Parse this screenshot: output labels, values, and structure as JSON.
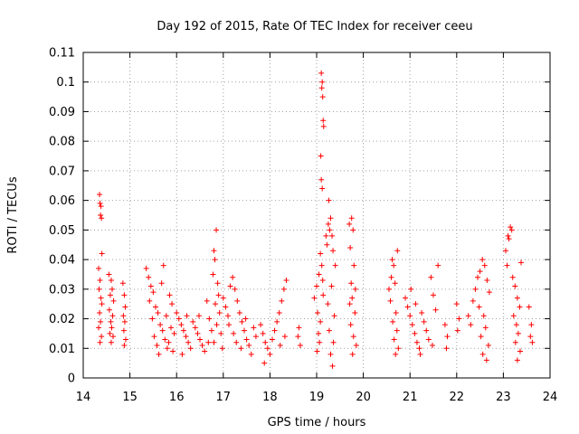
{
  "chart_data": {
    "type": "scatter",
    "title": "Day 192 of 2015, Rate Of TEC Index for receiver ceeu",
    "xlabel": "GPS time / hours",
    "ylabel": "ROTI / TECUs",
    "xlim": [
      14,
      24
    ],
    "ylim": [
      0,
      0.11
    ],
    "xticks": [
      "14",
      "15",
      "16",
      "17",
      "18",
      "19",
      "20",
      "21",
      "22",
      "23",
      "24"
    ],
    "yticks": [
      "0",
      "0.01",
      "0.02",
      "0.03",
      "0.04",
      "0.05",
      "0.06",
      "0.07",
      "0.08",
      "0.09",
      "0.1",
      "0.11"
    ],
    "grid": true,
    "marker": "+",
    "color": "#ff0000",
    "series": [
      {
        "values": [
          [
            14.35,
            0.062
          ],
          [
            14.36,
            0.059
          ],
          [
            14.38,
            0.058
          ],
          [
            14.37,
            0.055
          ],
          [
            14.39,
            0.054
          ],
          [
            14.4,
            0.042
          ],
          [
            14.33,
            0.037
          ],
          [
            14.36,
            0.033
          ],
          [
            14.34,
            0.03
          ],
          [
            14.38,
            0.027
          ],
          [
            14.4,
            0.025
          ],
          [
            14.35,
            0.022
          ],
          [
            14.37,
            0.019
          ],
          [
            14.33,
            0.017
          ],
          [
            14.39,
            0.014
          ],
          [
            14.36,
            0.012
          ],
          [
            14.55,
            0.035
          ],
          [
            14.6,
            0.033
          ],
          [
            14.62,
            0.03
          ],
          [
            14.58,
            0.028
          ],
          [
            14.65,
            0.026
          ],
          [
            14.56,
            0.023
          ],
          [
            14.63,
            0.021
          ],
          [
            14.59,
            0.019
          ],
          [
            14.61,
            0.017
          ],
          [
            14.57,
            0.015
          ],
          [
            14.64,
            0.014
          ],
          [
            14.6,
            0.012
          ],
          [
            14.85,
            0.032
          ],
          [
            14.88,
            0.028
          ],
          [
            14.9,
            0.024
          ],
          [
            14.86,
            0.021
          ],
          [
            14.89,
            0.019
          ],
          [
            14.87,
            0.016
          ],
          [
            14.91,
            0.013
          ],
          [
            14.88,
            0.011
          ],
          [
            15.35,
            0.037
          ],
          [
            15.4,
            0.034
          ],
          [
            15.45,
            0.031
          ],
          [
            15.5,
            0.029
          ],
          [
            15.42,
            0.026
          ],
          [
            15.55,
            0.024
          ],
          [
            15.6,
            0.022
          ],
          [
            15.48,
            0.02
          ],
          [
            15.65,
            0.018
          ],
          [
            15.7,
            0.016
          ],
          [
            15.52,
            0.014
          ],
          [
            15.75,
            0.013
          ],
          [
            15.58,
            0.011
          ],
          [
            15.8,
            0.01
          ],
          [
            15.62,
            0.008
          ],
          [
            15.72,
            0.038
          ],
          [
            15.68,
            0.032
          ],
          [
            15.85,
            0.028
          ],
          [
            15.9,
            0.025
          ],
          [
            15.78,
            0.021
          ],
          [
            15.88,
            0.017
          ],
          [
            15.95,
            0.015
          ],
          [
            15.83,
            0.012
          ],
          [
            15.92,
            0.009
          ],
          [
            16.0,
            0.022
          ],
          [
            16.05,
            0.02
          ],
          [
            16.1,
            0.018
          ],
          [
            16.15,
            0.016
          ],
          [
            16.2,
            0.014
          ],
          [
            16.25,
            0.012
          ],
          [
            16.3,
            0.01
          ],
          [
            16.12,
            0.008
          ],
          [
            16.22,
            0.021
          ],
          [
            16.35,
            0.019
          ],
          [
            16.4,
            0.017
          ],
          [
            16.45,
            0.015
          ],
          [
            16.5,
            0.013
          ],
          [
            16.55,
            0.011
          ],
          [
            16.6,
            0.009
          ],
          [
            16.48,
            0.021
          ],
          [
            16.65,
            0.026
          ],
          [
            16.7,
            0.02
          ],
          [
            16.75,
            0.016
          ],
          [
            16.68,
            0.012
          ],
          [
            16.8,
            0.043
          ],
          [
            16.82,
            0.04
          ],
          [
            16.85,
            0.05
          ],
          [
            16.78,
            0.035
          ],
          [
            16.88,
            0.032
          ],
          [
            16.9,
            0.028
          ],
          [
            16.83,
            0.025
          ],
          [
            16.92,
            0.022
          ],
          [
            16.86,
            0.018
          ],
          [
            16.95,
            0.015
          ],
          [
            16.8,
            0.012
          ],
          [
            16.98,
            0.01
          ],
          [
            17.0,
            0.027
          ],
          [
            17.05,
            0.024
          ],
          [
            17.1,
            0.021
          ],
          [
            17.15,
            0.031
          ],
          [
            17.2,
            0.034
          ],
          [
            17.25,
            0.03
          ],
          [
            17.3,
            0.026
          ],
          [
            17.12,
            0.018
          ],
          [
            17.22,
            0.015
          ],
          [
            17.35,
            0.022
          ],
          [
            17.4,
            0.019
          ],
          [
            17.28,
            0.012
          ],
          [
            17.45,
            0.016
          ],
          [
            17.5,
            0.013
          ],
          [
            17.38,
            0.01
          ],
          [
            17.55,
            0.011
          ],
          [
            17.6,
            0.008
          ],
          [
            17.48,
            0.02
          ],
          [
            17.65,
            0.017
          ],
          [
            17.7,
            0.014
          ],
          [
            17.8,
            0.018
          ],
          [
            17.85,
            0.015
          ],
          [
            17.9,
            0.012
          ],
          [
            17.95,
            0.01
          ],
          [
            18.0,
            0.008
          ],
          [
            17.88,
            0.005
          ],
          [
            18.05,
            0.013
          ],
          [
            18.1,
            0.016
          ],
          [
            18.15,
            0.019
          ],
          [
            18.2,
            0.022
          ],
          [
            18.25,
            0.026
          ],
          [
            18.3,
            0.03
          ],
          [
            18.35,
            0.033
          ],
          [
            18.22,
            0.011
          ],
          [
            18.32,
            0.014
          ],
          [
            18.6,
            0.014
          ],
          [
            18.65,
            0.011
          ],
          [
            18.62,
            0.017
          ],
          [
            18.95,
            0.027
          ],
          [
            19.0,
            0.031
          ],
          [
            19.05,
            0.035
          ],
          [
            19.02,
            0.022
          ],
          [
            19.08,
            0.019
          ],
          [
            19.04,
            0.015
          ],
          [
            19.06,
            0.012
          ],
          [
            19.01,
            0.009
          ],
          [
            19.1,
            0.103
          ],
          [
            19.12,
            0.1
          ],
          [
            19.11,
            0.098
          ],
          [
            19.13,
            0.095
          ],
          [
            19.14,
            0.087
          ],
          [
            19.15,
            0.085
          ],
          [
            19.09,
            0.075
          ],
          [
            19.1,
            0.067
          ],
          [
            19.12,
            0.064
          ],
          [
            19.08,
            0.042
          ],
          [
            19.11,
            0.038
          ],
          [
            19.13,
            0.033
          ],
          [
            19.14,
            0.028
          ],
          [
            19.2,
            0.048
          ],
          [
            19.25,
            0.052
          ],
          [
            19.22,
            0.045
          ],
          [
            19.28,
            0.05
          ],
          [
            19.3,
            0.054
          ],
          [
            19.33,
            0.048
          ],
          [
            19.35,
            0.043
          ],
          [
            19.26,
            0.06
          ],
          [
            19.4,
            0.038
          ],
          [
            19.32,
            0.031
          ],
          [
            19.24,
            0.025
          ],
          [
            19.38,
            0.021
          ],
          [
            19.27,
            0.016
          ],
          [
            19.36,
            0.012
          ],
          [
            19.3,
            0.008
          ],
          [
            19.34,
            0.004
          ],
          [
            19.7,
            0.052
          ],
          [
            19.75,
            0.054
          ],
          [
            19.78,
            0.05
          ],
          [
            19.72,
            0.044
          ],
          [
            19.8,
            0.038
          ],
          [
            19.74,
            0.032
          ],
          [
            19.76,
            0.027
          ],
          [
            19.82,
            0.022
          ],
          [
            19.73,
            0.018
          ],
          [
            19.79,
            0.014
          ],
          [
            19.85,
            0.011
          ],
          [
            19.71,
            0.025
          ],
          [
            19.83,
            0.03
          ],
          [
            19.77,
            0.008
          ],
          [
            20.55,
            0.03
          ],
          [
            20.6,
            0.034
          ],
          [
            20.65,
            0.038
          ],
          [
            20.62,
            0.04
          ],
          [
            20.68,
            0.032
          ],
          [
            20.58,
            0.026
          ],
          [
            20.7,
            0.022
          ],
          [
            20.63,
            0.019
          ],
          [
            20.72,
            0.016
          ],
          [
            20.66,
            0.013
          ],
          [
            20.75,
            0.01
          ],
          [
            20.69,
            0.008
          ],
          [
            20.73,
            0.043
          ],
          [
            20.9,
            0.027
          ],
          [
            20.95,
            0.024
          ],
          [
            21.0,
            0.021
          ],
          [
            21.05,
            0.018
          ],
          [
            21.1,
            0.015
          ],
          [
            21.15,
            0.012
          ],
          [
            21.2,
            0.01
          ],
          [
            21.02,
            0.03
          ],
          [
            21.12,
            0.025
          ],
          [
            21.25,
            0.022
          ],
          [
            21.3,
            0.019
          ],
          [
            21.35,
            0.016
          ],
          [
            21.4,
            0.013
          ],
          [
            21.22,
            0.008
          ],
          [
            21.45,
            0.034
          ],
          [
            21.5,
            0.028
          ],
          [
            21.55,
            0.023
          ],
          [
            21.6,
            0.038
          ],
          [
            21.48,
            0.011
          ],
          [
            21.75,
            0.018
          ],
          [
            21.8,
            0.014
          ],
          [
            21.78,
            0.01
          ],
          [
            22.0,
            0.025
          ],
          [
            22.05,
            0.02
          ],
          [
            22.02,
            0.016
          ],
          [
            22.25,
            0.021
          ],
          [
            22.3,
            0.018
          ],
          [
            22.35,
            0.026
          ],
          [
            22.4,
            0.03
          ],
          [
            22.45,
            0.034
          ],
          [
            22.5,
            0.036
          ],
          [
            22.55,
            0.04
          ],
          [
            22.6,
            0.038
          ],
          [
            22.65,
            0.033
          ],
          [
            22.7,
            0.029
          ],
          [
            22.48,
            0.024
          ],
          [
            22.58,
            0.021
          ],
          [
            22.62,
            0.017
          ],
          [
            22.52,
            0.014
          ],
          [
            22.68,
            0.011
          ],
          [
            22.56,
            0.008
          ],
          [
            22.64,
            0.006
          ],
          [
            23.05,
            0.043
          ],
          [
            23.1,
            0.048
          ],
          [
            23.15,
            0.051
          ],
          [
            23.18,
            0.05
          ],
          [
            23.12,
            0.047
          ],
          [
            23.08,
            0.038
          ],
          [
            23.2,
            0.034
          ],
          [
            23.25,
            0.031
          ],
          [
            23.3,
            0.027
          ],
          [
            23.35,
            0.024
          ],
          [
            23.22,
            0.021
          ],
          [
            23.28,
            0.018
          ],
          [
            23.38,
            0.039
          ],
          [
            23.32,
            0.015
          ],
          [
            23.26,
            0.012
          ],
          [
            23.36,
            0.009
          ],
          [
            23.3,
            0.006
          ],
          [
            23.55,
            0.024
          ],
          [
            23.6,
            0.018
          ],
          [
            23.58,
            0.014
          ],
          [
            23.62,
            0.012
          ]
        ]
      }
    ]
  }
}
